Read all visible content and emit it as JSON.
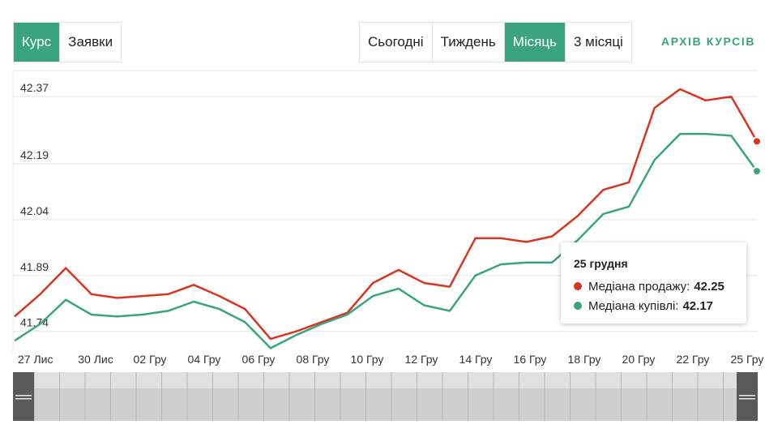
{
  "mode_tabs": [
    {
      "label": "Курс",
      "active": true
    },
    {
      "label": "Заявки",
      "active": false
    }
  ],
  "period_tabs": [
    {
      "label": "Сьогодні",
      "active": false
    },
    {
      "label": "Тиждень",
      "active": false
    },
    {
      "label": "Місяць",
      "active": true
    },
    {
      "label": "3 місяці",
      "active": false
    }
  ],
  "archive_link": "АРХІВ КУРСІВ",
  "colors": {
    "accent": "#3aa47e",
    "sell": "#d9341f",
    "buy": "#3aa47e",
    "grid": "#e6e6e6"
  },
  "tooltip": {
    "date": "25 грудня",
    "sell_label": "Медіана продажу:",
    "sell_value": "42.25",
    "buy_label": "Медіана купівлі:",
    "buy_value": "42.17"
  },
  "chart_data": {
    "type": "line",
    "x_ticks": [
      "27 Лис",
      "30 Лис",
      "02 Гру",
      "04 Гру",
      "06 Гру",
      "08 Гру",
      "10 Гру",
      "12 Гру",
      "14 Гру",
      "16 Гру",
      "18 Гру",
      "20 Гру",
      "22 Гру",
      "25 Гру"
    ],
    "y_ticks": [
      42.37,
      42.19,
      42.04,
      41.89,
      41.74
    ],
    "ylim": [
      41.685,
      42.44
    ],
    "grid": true,
    "series": [
      {
        "key": "sell",
        "name": "Медіана продажу",
        "values": [
          41.78,
          41.84,
          41.91,
          41.84,
          41.83,
          41.835,
          41.84,
          41.865,
          41.835,
          41.8,
          41.72,
          41.74,
          41.765,
          41.79,
          41.87,
          41.905,
          41.87,
          41.86,
          41.99,
          41.99,
          41.98,
          41.995,
          42.05,
          42.12,
          42.14,
          42.34,
          42.39,
          42.36,
          42.37,
          42.25
        ]
      },
      {
        "key": "buy",
        "name": "Медіана купівлі",
        "values": [
          41.715,
          41.76,
          41.825,
          41.785,
          41.78,
          41.785,
          41.795,
          41.82,
          41.8,
          41.765,
          41.695,
          41.73,
          41.76,
          41.785,
          41.835,
          41.855,
          41.81,
          41.795,
          41.89,
          41.92,
          41.925,
          41.925,
          41.985,
          42.055,
          42.075,
          42.2,
          42.27,
          42.27,
          42.265,
          42.17
        ]
      }
    ]
  }
}
